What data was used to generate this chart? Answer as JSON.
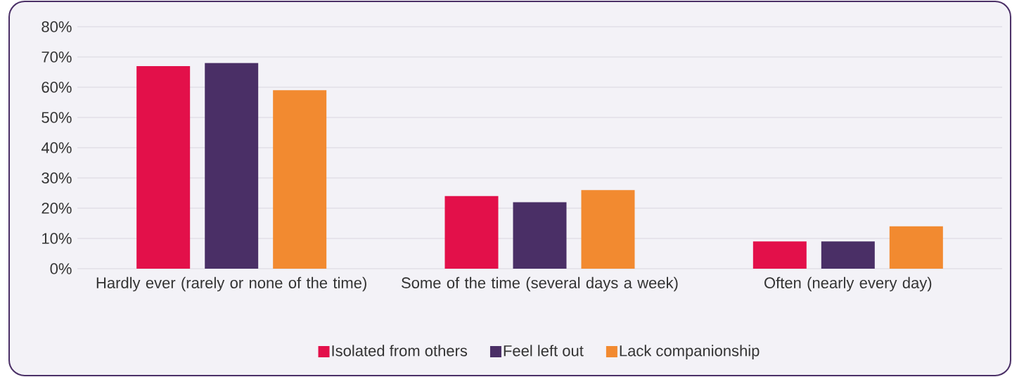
{
  "chart_data": {
    "type": "bar",
    "categories": [
      "Hardly ever (rarely or none of the time)",
      "Some of the time (several days a week)",
      "Often (nearly every day)"
    ],
    "series": [
      {
        "name": "Isolated from others",
        "color": "#e3104a",
        "values": [
          67,
          24,
          9
        ]
      },
      {
        "name": "Feel left out",
        "color": "#4a2f66",
        "values": [
          68,
          22,
          9
        ]
      },
      {
        "name": "Lack companionship",
        "color": "#f28a30",
        "values": [
          59,
          26,
          14
        ]
      }
    ],
    "ylim": [
      0,
      80
    ],
    "yticks": [
      {
        "value": 0,
        "label": "0%"
      },
      {
        "value": 10,
        "label": "10%"
      },
      {
        "value": 20,
        "label": "20%"
      },
      {
        "value": 30,
        "label": "30%"
      },
      {
        "value": 40,
        "label": "40%"
      },
      {
        "value": 50,
        "label": "50%"
      },
      {
        "value": 60,
        "label": "60%"
      },
      {
        "value": 70,
        "label": "70%"
      },
      {
        "value": 80,
        "label": "80%"
      }
    ],
    "grid": "y",
    "legend": "bottom"
  }
}
